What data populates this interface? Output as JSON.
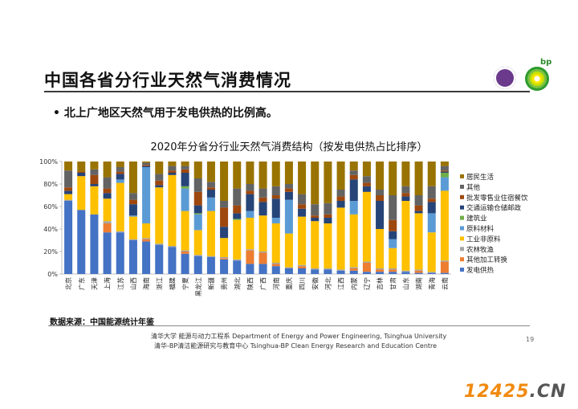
{
  "slide": {
    "title": "中国各省分行业天然气消费情况",
    "bullet": "• 北上广地区天然气用于发电供热的比例高。",
    "logo_text": "bp",
    "source": "数据来源：中国能源统计年鉴",
    "footer_line1": "清华大学 能源与动力工程系 Department of Energy and Power Engineering, Tsinghua University",
    "footer_line2": "清华-BP清洁能源研究与教育中心 Tsinghua-BP Clean Energy Research and Education Centre",
    "page_number": "19",
    "watermark_main": "12425",
    "watermark_suffix": ".CN"
  },
  "chart_data": {
    "type": "bar",
    "stacked": true,
    "title": "2020年分省分行业天然气消费结构（按发电供热占比排序）",
    "ylim": [
      0,
      100
    ],
    "y_ticks": [
      "0%",
      "20%",
      "40%",
      "60%",
      "80%",
      "100%"
    ],
    "grid": false,
    "legend_position": "right",
    "categories": [
      "北京",
      "广东",
      "天津",
      "上海",
      "江苏",
      "山西",
      "海南",
      "浙江",
      "福建",
      "宁夏",
      "黑龙江",
      "新疆",
      "贵州",
      "湖北",
      "陕西",
      "广西",
      "河南",
      "重庆",
      "四川",
      "安徽",
      "河北",
      "江西",
      "内蒙",
      "辽宁",
      "吉林",
      "甘肃",
      "山东",
      "湖南",
      "青海",
      "云南"
    ],
    "series": [
      {
        "name": "发电供热",
        "color": "#4472c4",
        "values": [
          65,
          57,
          53,
          37,
          37,
          30,
          29,
          26,
          24,
          18,
          16,
          15,
          13,
          12,
          9,
          9,
          7,
          5,
          5,
          4,
          4,
          3,
          3,
          2,
          2,
          2,
          2,
          1,
          1,
          1
        ]
      },
      {
        "name": "其他加工转换",
        "color": "#ed7d31",
        "values": [
          0,
          0,
          0,
          8,
          0,
          0,
          2,
          0,
          0,
          2,
          0,
          0,
          1,
          0,
          12,
          10,
          2,
          0,
          2,
          0,
          0,
          0,
          2,
          8,
          2,
          2,
          0,
          2,
          0,
          10
        ]
      },
      {
        "name": "农林牧渔",
        "color": "#a5a5a5",
        "values": [
          1,
          0,
          0,
          2,
          1,
          1,
          1,
          1,
          1,
          1,
          1,
          1,
          1,
          1,
          1,
          1,
          1,
          1,
          1,
          1,
          1,
          1,
          1,
          1,
          1,
          1,
          1,
          1,
          1,
          1
        ]
      },
      {
        "name": "工业非原料",
        "color": "#ffc000",
        "values": [
          5,
          30,
          25,
          20,
          43,
          20,
          13,
          50,
          63,
          35,
          22,
          40,
          17,
          35,
          28,
          32,
          35,
          30,
          43,
          42,
          40,
          55,
          47,
          62,
          35,
          18,
          62,
          50,
          35,
          62
        ]
      },
      {
        "name": "原料材料",
        "color": "#5b9bd5",
        "values": [
          0,
          0,
          0,
          0,
          3,
          1,
          50,
          0,
          0,
          20,
          14,
          12,
          0,
          0,
          6,
          0,
          5,
          30,
          0,
          0,
          0,
          0,
          12,
          0,
          0,
          8,
          0,
          0,
          17,
          12
        ]
      },
      {
        "name": "建筑业",
        "color": "#70ad47",
        "values": [
          0,
          0,
          0,
          0,
          0,
          0,
          0,
          0,
          0,
          2,
          1,
          0,
          0,
          1,
          0,
          0,
          0,
          0,
          0,
          0,
          0,
          0,
          0,
          0,
          0,
          0,
          0,
          0,
          0,
          4
        ]
      },
      {
        "name": "交通运输仓储邮政",
        "color": "#264478",
        "values": [
          3,
          3,
          2,
          5,
          5,
          10,
          1,
          2,
          2,
          12,
          7,
          7,
          10,
          5,
          15,
          12,
          17,
          7,
          7,
          3,
          5,
          6,
          19,
          5,
          25,
          7,
          4,
          2,
          10,
          1
        ]
      },
      {
        "name": "批发零售业住宿餐饮",
        "color": "#9e480e",
        "values": [
          3,
          1,
          8,
          4,
          2,
          4,
          1,
          4,
          2,
          3,
          12,
          2,
          17,
          7,
          3,
          4,
          3,
          3,
          4,
          2,
          3,
          4,
          4,
          3,
          5,
          10,
          3,
          5,
          3,
          1
        ]
      },
      {
        "name": "其他",
        "color": "#636363",
        "values": [
          15,
          0,
          5,
          10,
          4,
          6,
          2,
          6,
          4,
          3,
          12,
          5,
          6,
          15,
          6,
          8,
          8,
          4,
          9,
          10,
          10,
          6,
          4,
          6,
          5,
          22,
          6,
          9,
          11,
          4
        ]
      },
      {
        "name": "居民生活",
        "color": "#997300",
        "values": [
          8,
          9,
          7,
          14,
          5,
          28,
          1,
          11,
          4,
          4,
          15,
          18,
          35,
          24,
          20,
          24,
          22,
          20,
          29,
          38,
          37,
          25,
          8,
          13,
          25,
          30,
          22,
          30,
          22,
          4
        ]
      }
    ]
  }
}
